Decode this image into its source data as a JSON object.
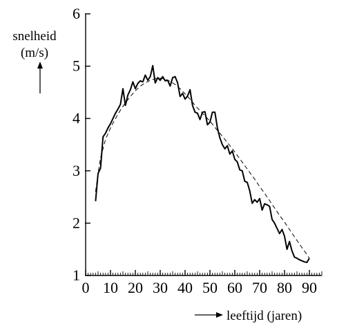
{
  "chart_data": {
    "type": "line",
    "title": "",
    "ylabel_line1": "snelheid",
    "ylabel_line2": "(m/s)",
    "xlabel": "leeftijd (jaren)",
    "xlim": [
      0,
      95
    ],
    "ylim": [
      1,
      6
    ],
    "xticks": [
      0,
      10,
      20,
      30,
      40,
      50,
      60,
      70,
      80,
      90
    ],
    "yticks": [
      1,
      2,
      3,
      4,
      5,
      6
    ],
    "x_minor_step": 1,
    "grid": false,
    "legend": "none",
    "series": [
      {
        "style": "solid",
        "x": [
          4,
          5,
          6,
          7,
          8,
          9,
          10,
          11,
          12,
          13,
          14,
          15,
          16,
          17,
          18,
          19,
          20,
          21,
          22,
          23,
          24,
          25,
          26,
          27,
          28,
          29,
          30,
          31,
          32,
          33,
          34,
          35,
          36,
          37,
          38,
          39,
          40,
          41,
          42,
          43,
          44,
          45,
          46,
          47,
          48,
          49,
          50,
          51,
          52,
          53,
          54,
          55,
          56,
          57,
          58,
          59,
          60,
          61,
          62,
          63,
          64,
          65,
          66,
          67,
          68,
          69,
          70,
          71,
          72,
          73,
          74,
          75,
          76,
          77,
          78,
          79,
          80,
          81,
          82,
          83,
          84,
          85,
          86,
          87,
          88,
          89,
          90
        ],
        "values": [
          2.42,
          2.95,
          3.05,
          3.65,
          3.72,
          3.82,
          3.9,
          4.0,
          4.1,
          4.18,
          4.27,
          4.57,
          4.25,
          4.45,
          4.55,
          4.7,
          4.57,
          4.67,
          4.72,
          4.7,
          4.83,
          4.73,
          4.8,
          5.01,
          4.68,
          4.78,
          4.73,
          4.8,
          4.72,
          4.73,
          4.62,
          4.78,
          4.8,
          4.68,
          4.42,
          4.48,
          4.37,
          4.43,
          4.55,
          4.25,
          4.12,
          4.1,
          3.98,
          4.12,
          4.13,
          3.88,
          3.93,
          4.12,
          4.12,
          3.82,
          3.63,
          3.5,
          3.42,
          3.48,
          3.32,
          3.38,
          3.22,
          3.17,
          3.02,
          3.0,
          2.8,
          2.78,
          2.62,
          2.38,
          2.45,
          2.4,
          2.47,
          2.25,
          2.37,
          2.35,
          2.32,
          2.07,
          2.0,
          1.9,
          1.8,
          1.88,
          1.75,
          1.5,
          1.65,
          1.47,
          1.35,
          1.33,
          1.3,
          1.28,
          1.26,
          1.25,
          1.33
        ]
      },
      {
        "style": "dashed",
        "x": [
          4,
          5,
          6,
          8,
          10,
          12,
          14,
          16,
          18,
          20,
          22,
          24,
          26,
          28,
          30,
          32,
          34,
          36,
          38,
          40,
          42,
          44,
          46,
          48,
          50,
          52,
          54,
          56,
          58,
          60,
          62,
          64,
          66,
          68,
          70,
          72,
          74,
          76,
          78,
          80,
          82,
          84,
          86,
          88,
          90
        ],
        "values": [
          2.6,
          2.95,
          3.25,
          3.6,
          3.82,
          4.0,
          4.16,
          4.3,
          4.42,
          4.53,
          4.62,
          4.68,
          4.73,
          4.76,
          4.77,
          4.75,
          4.71,
          4.65,
          4.57,
          4.47,
          4.37,
          4.25,
          4.15,
          4.05,
          3.95,
          3.83,
          3.72,
          3.6,
          3.48,
          3.36,
          3.23,
          3.1,
          2.97,
          2.84,
          2.7,
          2.57,
          2.43,
          2.29,
          2.15,
          2.02,
          1.88,
          1.74,
          1.6,
          1.47,
          1.33
        ]
      }
    ]
  }
}
